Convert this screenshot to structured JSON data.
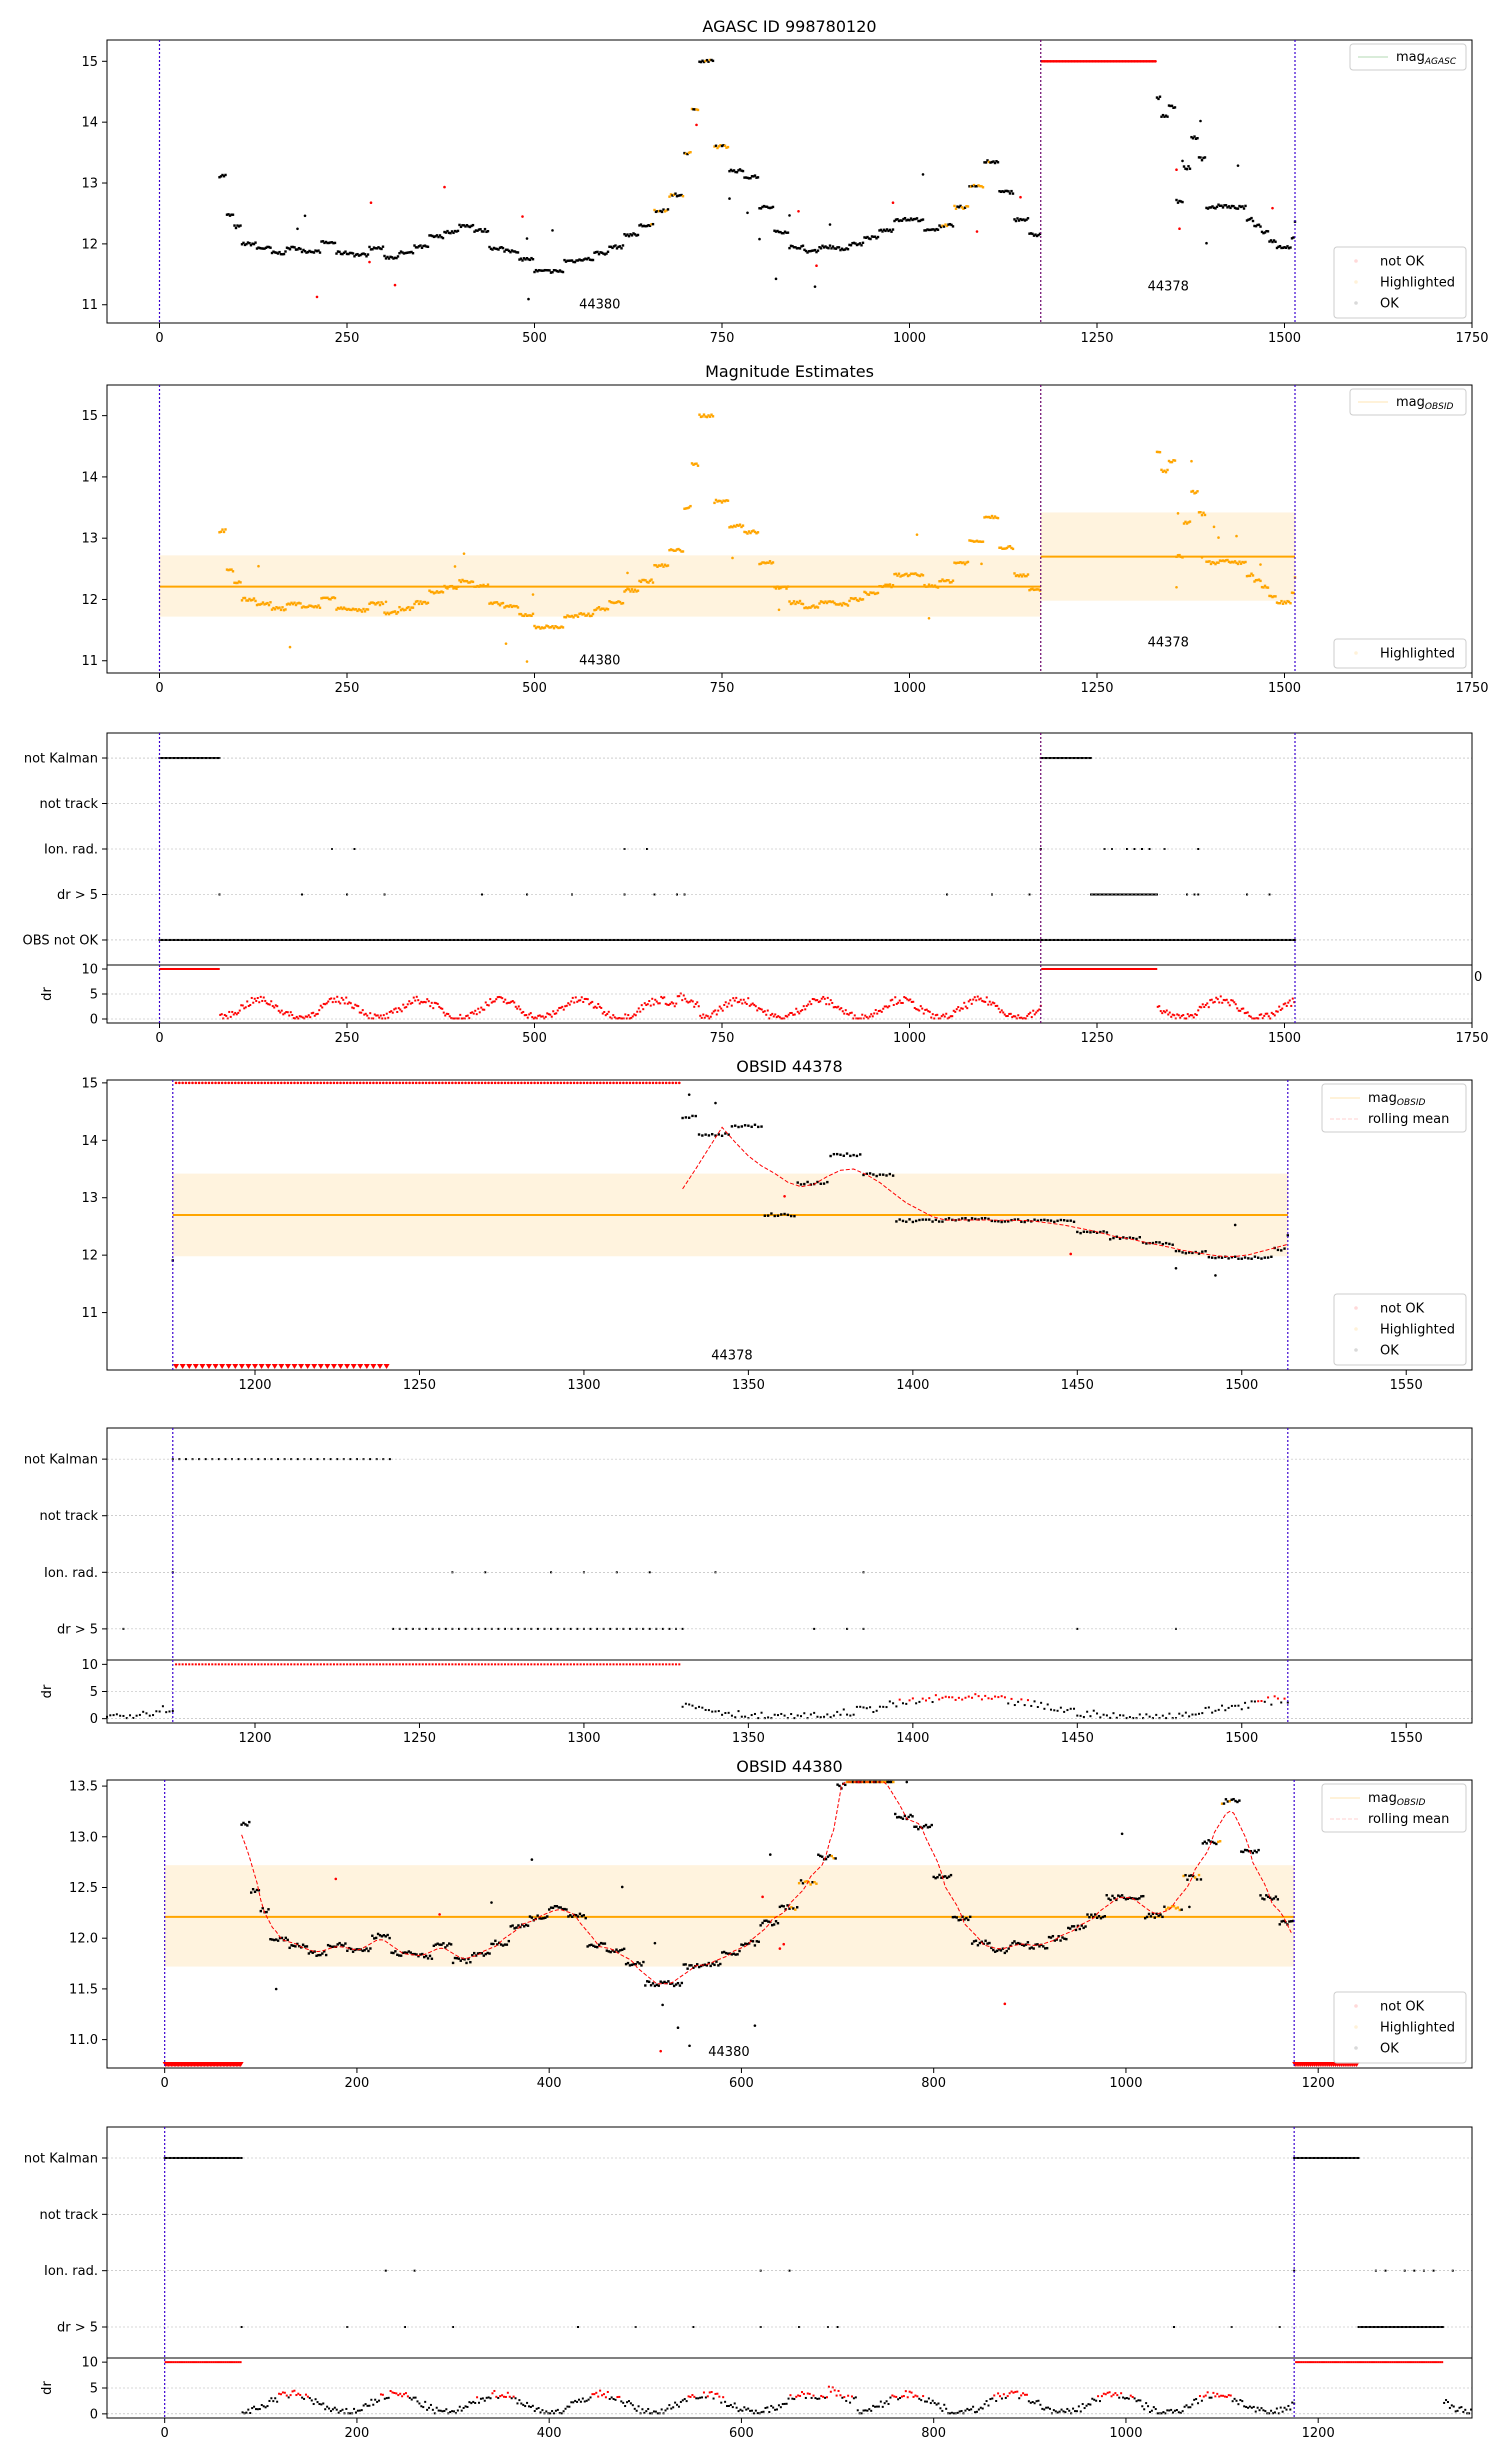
{
  "figure": {
    "panels": [
      {
        "id": "agasc",
        "kind": "mag",
        "title": "AGASC ID 998780120",
        "xlim": [
          -70,
          1750
        ],
        "ylim": [
          10.7,
          15.35
        ],
        "xticks": [
          0,
          250,
          500,
          750,
          1000,
          1250,
          1500,
          1750
        ],
        "yticks": [
          11,
          12,
          13,
          14,
          15
        ],
        "vlines_purple": [
          0,
          1514
        ],
        "vlines_black": [
          1175
        ],
        "obsid_labels": [
          {
            "text": "44380",
            "x": 587,
            "y": 11.0
          },
          {
            "text": "44378",
            "x": 1345,
            "y": 11.3
          }
        ],
        "legend_top": {
          "label": "mag",
          "sub": "AGASC",
          "color": "#008000"
        },
        "legend_bottom": [
          "not OK",
          "Highlighted",
          "OK"
        ],
        "band": null,
        "segments_ref": "mag_full"
      },
      {
        "id": "estimates",
        "kind": "mag",
        "title": "Magnitude Estimates",
        "xlim": [
          -70,
          1750
        ],
        "ylim": [
          10.8,
          15.5
        ],
        "xticks": [
          0,
          250,
          500,
          750,
          1000,
          1250,
          1500,
          1750
        ],
        "yticks": [
          11,
          12,
          13,
          14,
          15
        ],
        "vlines_purple": [
          0,
          1514
        ],
        "vlines_black": [
          1175
        ],
        "obsid_labels": [
          {
            "text": "44380",
            "x": 587,
            "y": 11.0
          },
          {
            "text": "44378",
            "x": 1345,
            "y": 11.3
          }
        ],
        "legend_top": {
          "label": "mag",
          "sub": "OBSID",
          "color": "#ffa500"
        },
        "legend_bottom": [
          "Highlighted"
        ],
        "bands": [
          {
            "x0": 0,
            "x1": 1175,
            "mean": 12.21,
            "lo": 11.72,
            "hi": 12.72
          },
          {
            "x0": 1175,
            "x1": 1514,
            "mean": 12.7,
            "lo": 11.98,
            "hi": 13.42
          }
        ]
      },
      {
        "id": "flags_full",
        "kind": "flags",
        "xlim": [
          -70,
          1750
        ],
        "xticks": [
          0,
          250,
          500,
          750,
          1000,
          1250,
          1500,
          1750
        ],
        "flag_labels": [
          "not Kalman",
          "not track",
          "Ion. rad.",
          "dr > 5",
          "OBS not OK"
        ],
        "dr_label": "dr",
        "dr_ticks": [
          0,
          5,
          10
        ],
        "vlines_purple": [
          0,
          1514
        ],
        "vlines_black": [
          1175
        ],
        "stray_tick": "0"
      },
      {
        "id": "obs44378",
        "kind": "mag",
        "title": "OBSID 44378",
        "xlim": [
          1155,
          1570
        ],
        "ylim": [
          10.0,
          15.05
        ],
        "xticks": [
          1200,
          1250,
          1300,
          1350,
          1400,
          1450,
          1500,
          1550
        ],
        "yticks": [
          11,
          12,
          13,
          14,
          15
        ],
        "vlines_purple": [
          1175,
          1514
        ],
        "vlines_black": [],
        "obsid_labels": [
          {
            "text": "44378",
            "x": 1345,
            "y": 10.25
          }
        ],
        "legend_top2": [
          {
            "label": "mag",
            "sub": "OBSID",
            "color": "#ffa500",
            "dash": false
          },
          {
            "label": "rolling mean",
            "sub": "",
            "color": "#ff0000",
            "dash": true
          }
        ],
        "legend_bottom": [
          "not OK",
          "Highlighted",
          "OK"
        ],
        "bands": [
          {
            "x0": 1175,
            "x1": 1514,
            "mean": 12.7,
            "lo": 11.98,
            "hi": 13.42
          }
        ]
      },
      {
        "id": "flags_44378",
        "kind": "flags",
        "xlim": [
          1155,
          1570
        ],
        "xticks": [
          1200,
          1250,
          1300,
          1350,
          1400,
          1450,
          1500,
          1550
        ],
        "flag_labels": [
          "not Kalman",
          "not track",
          "Ion. rad.",
          "dr > 5"
        ],
        "dr_label": "dr",
        "dr_ticks": [
          0,
          5,
          10
        ],
        "vlines_purple": [
          1175,
          1514
        ],
        "vlines_black": []
      },
      {
        "id": "obs44380",
        "kind": "mag",
        "title": "OBSID 44380",
        "xlim": [
          -60,
          1360
        ],
        "ylim": [
          10.72,
          13.56
        ],
        "xticks": [
          0,
          200,
          400,
          600,
          800,
          1000,
          1200
        ],
        "yticks": [
          11.0,
          11.5,
          12.0,
          12.5,
          13.0,
          13.5
        ],
        "ytick_labels": [
          "11.0",
          "11.5",
          "12.0",
          "12.5",
          "13.0",
          "13.5"
        ],
        "vlines_purple": [
          0,
          1175
        ],
        "vlines_black": [],
        "obsid_labels": [
          {
            "text": "44380",
            "x": 587,
            "y": 10.88
          }
        ],
        "legend_top2": [
          {
            "label": "mag",
            "sub": "OBSID",
            "color": "#ffa500",
            "dash": false
          },
          {
            "label": "rolling mean",
            "sub": "",
            "color": "#ff0000",
            "dash": true
          }
        ],
        "legend_bottom": [
          "not OK",
          "Highlighted",
          "OK"
        ],
        "bands": [
          {
            "x0": 0,
            "x1": 1175,
            "mean": 12.21,
            "lo": 11.72,
            "hi": 12.72
          }
        ]
      },
      {
        "id": "flags_44380",
        "kind": "flags",
        "xlim": [
          -60,
          1360
        ],
        "xticks": [
          0,
          200,
          400,
          600,
          800,
          1000,
          1200
        ],
        "flag_labels": [
          "not Kalman",
          "not track",
          "Ion. rad.",
          "dr > 5"
        ],
        "dr_label": "dr",
        "dr_ticks": [
          0,
          5,
          10
        ],
        "vlines_purple": [
          0,
          1175
        ],
        "vlines_black": []
      }
    ]
  },
  "chart_data": {
    "type": "scatter",
    "title": "AGASC ID 998780120",
    "subtitle_panels": [
      "Magnitude Estimates",
      "OBSID 44378",
      "OBSID 44380"
    ],
    "obsids": [
      "44380",
      "44378"
    ],
    "obsid_boundaries": [
      0,
      1175,
      1514
    ],
    "mag_segments_44380": [
      [
        80,
        13.12
      ],
      [
        90,
        12.47
      ],
      [
        100,
        12.28
      ],
      [
        110,
        12.0
      ],
      [
        130,
        11.93
      ],
      [
        150,
        11.85
      ],
      [
        170,
        11.93
      ],
      [
        190,
        11.88
      ],
      [
        215,
        12.02
      ],
      [
        235,
        11.85
      ],
      [
        260,
        11.82
      ],
      [
        280,
        11.93
      ],
      [
        300,
        11.78
      ],
      [
        320,
        11.85
      ],
      [
        340,
        11.95
      ],
      [
        360,
        12.12
      ],
      [
        380,
        12.2
      ],
      [
        400,
        12.3
      ],
      [
        420,
        12.22
      ],
      [
        440,
        11.93
      ],
      [
        460,
        11.88
      ],
      [
        480,
        11.75
      ],
      [
        500,
        11.55
      ],
      [
        520,
        11.55
      ],
      [
        540,
        11.72
      ],
      [
        560,
        11.75
      ],
      [
        580,
        11.85
      ],
      [
        600,
        11.95
      ],
      [
        620,
        12.15
      ],
      [
        640,
        12.3
      ],
      [
        660,
        12.55
      ],
      [
        680,
        12.8
      ],
      [
        700,
        13.5
      ],
      [
        710,
        14.2
      ],
      [
        720,
        15.0
      ],
      [
        740,
        13.6
      ],
      [
        760,
        13.2
      ],
      [
        780,
        13.1
      ],
      [
        800,
        12.6
      ],
      [
        820,
        12.2
      ],
      [
        840,
        11.95
      ],
      [
        860,
        11.88
      ],
      [
        880,
        11.95
      ],
      [
        900,
        11.92
      ],
      [
        920,
        12.0
      ],
      [
        940,
        12.1
      ],
      [
        960,
        12.22
      ],
      [
        980,
        12.4
      ],
      [
        1000,
        12.4
      ],
      [
        1020,
        12.22
      ],
      [
        1040,
        12.3
      ],
      [
        1060,
        12.6
      ],
      [
        1080,
        12.95
      ],
      [
        1100,
        13.35
      ],
      [
        1120,
        12.85
      ],
      [
        1140,
        12.4
      ],
      [
        1160,
        12.15
      ],
      [
        1175,
        11.9
      ]
    ],
    "mag_segments_44378": [
      [
        1330,
        14.4
      ],
      [
        1335,
        14.1
      ],
      [
        1345,
        14.25
      ],
      [
        1355,
        12.7
      ],
      [
        1365,
        13.25
      ],
      [
        1375,
        13.75
      ],
      [
        1385,
        13.4
      ],
      [
        1395,
        12.6
      ],
      [
        1410,
        12.62
      ],
      [
        1425,
        12.6
      ],
      [
        1440,
        12.6
      ],
      [
        1450,
        12.4
      ],
      [
        1460,
        12.3
      ],
      [
        1470,
        12.2
      ],
      [
        1480,
        12.05
      ],
      [
        1490,
        11.95
      ],
      [
        1500,
        11.95
      ],
      [
        1510,
        12.1
      ],
      [
        1514,
        12.35
      ]
    ],
    "mag_mean": [
      {
        "obsid": "44380",
        "value": 12.21,
        "std_band": [
          11.72,
          12.72
        ]
      },
      {
        "obsid": "44378",
        "value": 12.7,
        "std_band": [
          11.98,
          13.42
        ]
      }
    ],
    "flags": {
      "not_kalman": [
        [
          0,
          80
        ],
        [
          1175,
          1242
        ]
      ],
      "obs_not_ok": [
        [
          0,
          1514
        ]
      ],
      "dr_over_5": [
        [
          1242,
          1330
        ]
      ]
    },
    "series": [
      {
        "name": "not OK"
      },
      {
        "name": "Highlighted"
      },
      {
        "name": "OK"
      },
      {
        "name": "rolling mean"
      }
    ],
    "colors": {
      "ok": "#000000",
      "not_ok": "#ff0000",
      "highlighted": "#ffa500",
      "agasc": "#008000",
      "vline": "#5a008c"
    }
  }
}
